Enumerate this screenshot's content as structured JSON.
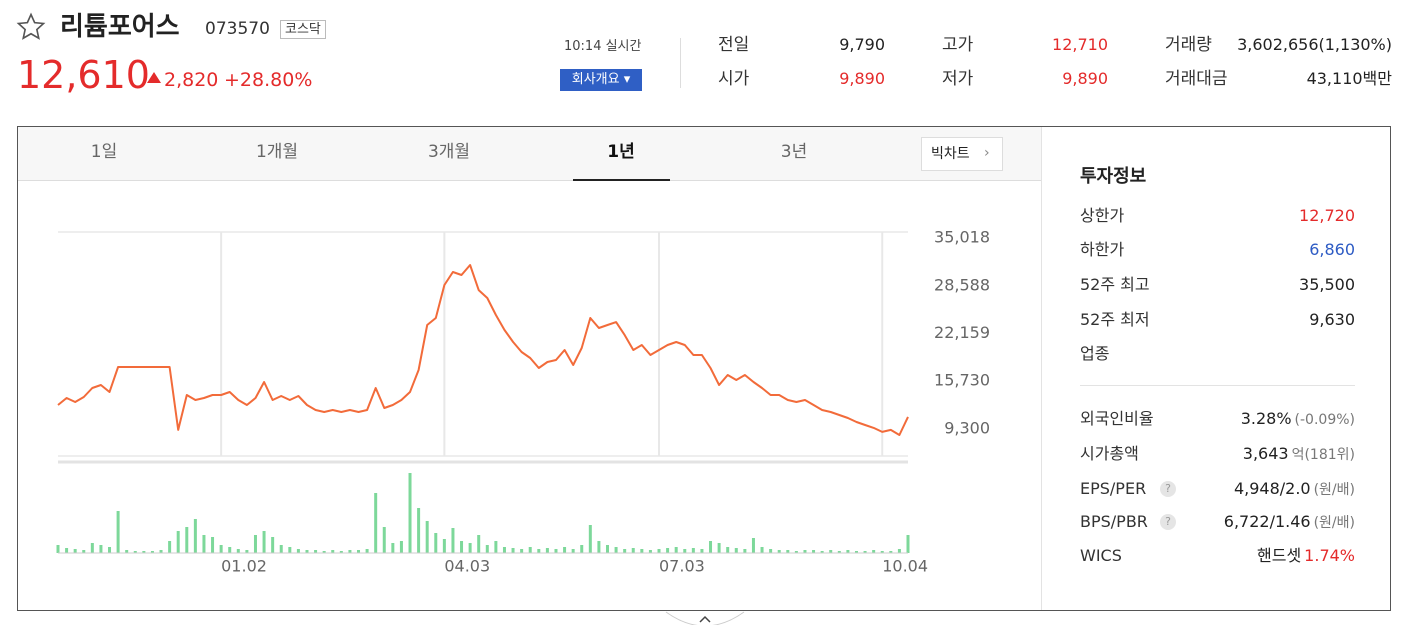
{
  "header": {
    "name": "리튬포어스",
    "code": "073570",
    "market": "코스닥",
    "price": "12,610",
    "change": "2,820",
    "change_rate": "+28.80%",
    "time": "10:14 실시간",
    "company_button": "회사개요"
  },
  "stats": [
    {
      "label": "전일",
      "value": "9,790"
    },
    {
      "label": "고가",
      "value": "12,710",
      "color": "#e42b2b"
    },
    {
      "label": "거래량",
      "value": "3,602,656(1,130%)"
    },
    {
      "label": "시가",
      "value": "9,890",
      "color": "#e42b2b"
    },
    {
      "label": "저가",
      "value": "9,890",
      "color": "#e42b2b"
    },
    {
      "label": "거래대금",
      "value": "43,110백만"
    }
  ],
  "tabs": [
    "1일",
    "1개월",
    "3개월",
    "1년",
    "3년"
  ],
  "big_chart": "빅차트",
  "invest": {
    "title": "투자정보",
    "rows": [
      {
        "label": "상한가",
        "value": "12,720",
        "color": "#e42b2b"
      },
      {
        "label": "하한가",
        "value": "6,860",
        "color": "#2d5bc4"
      },
      {
        "label": "52주 최고",
        "value": "35,500"
      },
      {
        "label": "52주 최저",
        "value": "9,630"
      },
      {
        "label": "업종"
      },
      {
        "label": "외국인비율",
        "value": "3.28%",
        "sub": "(-0.09%)"
      },
      {
        "label": "시가총액",
        "value": "3,643",
        "sub": "억(181위)"
      },
      {
        "label": "EPS/PER",
        "value": "4,948/2.0",
        "sub": "(원/배)",
        "help": true
      },
      {
        "label": "BPS/PBR",
        "value": "6,722/1.46",
        "sub": "(원/배)",
        "help": true
      },
      {
        "label": "WICS",
        "value": "핸드셋",
        "sub": "1.74%",
        "sub_color": "#e42b2b"
      }
    ]
  },
  "chart_data": {
    "type": "line",
    "categories": [
      null,
      null,
      null,
      null,
      null,
      null,
      null,
      null,
      null,
      null,
      null,
      null,
      null,
      null,
      null,
      null,
      null,
      null,
      null,
      "01.02",
      null,
      null,
      null,
      null,
      null,
      null,
      null,
      null,
      null,
      null,
      null,
      null,
      null,
      null,
      null,
      null,
      null,
      null,
      null,
      null,
      null,
      null,
      null,
      null,
      null,
      "04.03",
      null,
      null,
      null,
      null,
      null,
      null,
      null,
      null,
      null,
      null,
      null,
      null,
      null,
      null,
      null,
      null,
      null,
      null,
      null,
      null,
      null,
      null,
      null,
      null,
      "07.03",
      null,
      null,
      null,
      null,
      null,
      null,
      null,
      null,
      null,
      null,
      null,
      null,
      null,
      null,
      null,
      null,
      null,
      null,
      null,
      null,
      null,
      null,
      null,
      null,
      null,
      "10.04",
      null,
      null,
      null
    ],
    "ylim": [
      5660,
      35830
    ],
    "yticks": [
      {
        "value": 35018,
        "label": "35,018"
      },
      {
        "value": 28588,
        "label": "28,588"
      },
      {
        "value": 22159,
        "label": "22,159"
      },
      {
        "value": 15730,
        "label": "15,730"
      },
      {
        "value": 9300,
        "label": "9,300"
      }
    ],
    "series": [
      {
        "type": "line",
        "color": "#f26b3a",
        "values": [
          12530,
          13470,
          12930,
          13610,
          14820,
          15220,
          14280,
          17650,
          17650,
          17650,
          17650,
          17650,
          17650,
          17650,
          9170,
          13880,
          13200,
          13470,
          13880,
          13880,
          14280,
          13200,
          12530,
          13470,
          15630,
          13200,
          13740,
          13200,
          13740,
          12530,
          11860,
          11590,
          11860,
          11590,
          11860,
          11590,
          11860,
          14820,
          12130,
          12530,
          13200,
          14280,
          17240,
          23300,
          24250,
          28690,
          30440,
          30040,
          31380,
          28010,
          26940,
          24650,
          22630,
          21010,
          19670,
          18860,
          17510,
          18320,
          18590,
          19940,
          17920,
          20210,
          24250,
          22900,
          23300,
          23700,
          21950,
          19940,
          20610,
          19260,
          19940,
          20610,
          21010,
          20610,
          19260,
          19260,
          17510,
          15220,
          16570,
          15900,
          16570,
          15630,
          14820,
          13880,
          13880,
          13200,
          12930,
          13200,
          12530,
          11860,
          11590,
          11180,
          10780,
          10240,
          9840,
          9440,
          8900,
          9170,
          8490,
          10920
        ]
      },
      {
        "type": "bar",
        "color": "#7dd89a",
        "values": [
          8,
          5,
          4,
          3,
          10,
          8,
          6,
          42,
          3,
          2,
          2,
          2,
          3,
          12,
          22,
          26,
          34,
          18,
          16,
          8,
          6,
          4,
          3,
          18,
          22,
          16,
          8,
          6,
          4,
          3,
          3,
          2,
          3,
          2,
          3,
          3,
          4,
          60,
          26,
          10,
          12,
          80,
          45,
          32,
          20,
          14,
          25,
          12,
          10,
          18,
          8,
          12,
          6,
          5,
          4,
          6,
          4,
          5,
          4,
          6,
          4,
          8,
          28,
          12,
          8,
          6,
          4,
          5,
          4,
          3,
          4,
          5,
          6,
          4,
          5,
          4,
          12,
          10,
          6,
          5,
          4,
          15,
          6,
          4,
          3,
          3,
          2,
          3,
          3,
          2,
          3,
          2,
          3,
          2,
          2,
          3,
          2,
          2,
          4,
          18
        ]
      }
    ]
  }
}
